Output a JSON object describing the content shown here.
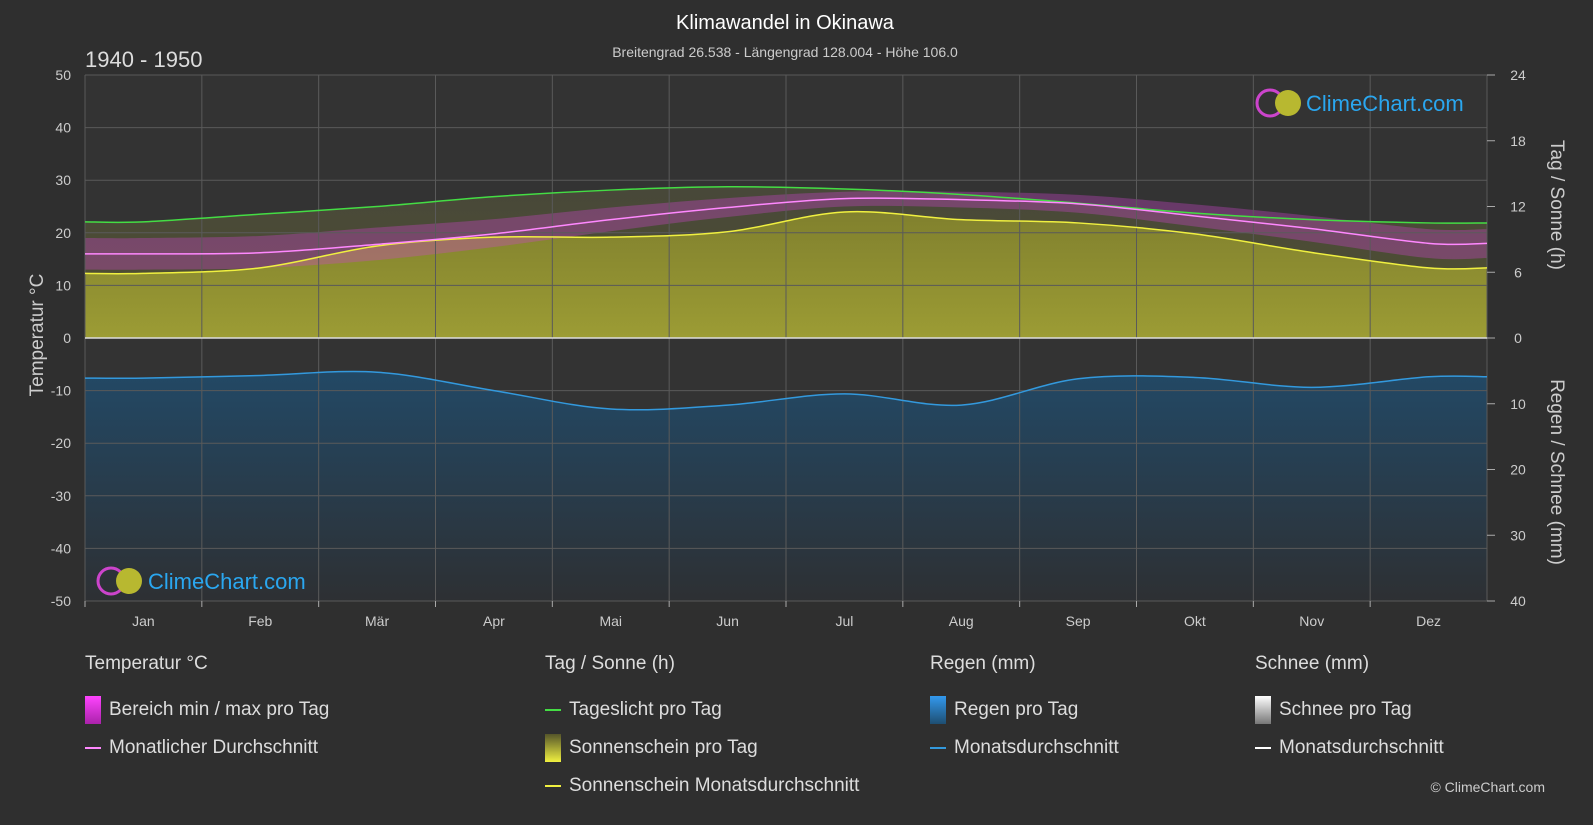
{
  "header": {
    "title": "Klimawandel in Okinawa",
    "subtitle": "Breitengrad 26.538 - Längengrad 128.004 - Höhe 106.0",
    "period": "1940 - 1950"
  },
  "watermark": {
    "text": "ClimeChart.com"
  },
  "copyright": "© ClimeChart.com",
  "colors": {
    "background": "#2f2f2f",
    "daylight": "#44dd44",
    "sunshine_avg": "#f0f040",
    "sunshine_fill": "#a8a832",
    "temp_avg": "#ff88ff",
    "temp_range": "#cc44cc",
    "rain": "#3399dd",
    "snow": "#ffffff",
    "brand": "#2aa7f0"
  },
  "chart_data": {
    "type": "line",
    "months": [
      "Jan",
      "Feb",
      "Mär",
      "Apr",
      "Mai",
      "Jun",
      "Jul",
      "Aug",
      "Sep",
      "Okt",
      "Nov",
      "Dez"
    ],
    "left_axis": {
      "title": "Temperatur °C",
      "min": -50,
      "max": 50,
      "ticks": [
        "50",
        "40",
        "30",
        "20",
        "10",
        "0",
        "-10",
        "-20",
        "-30",
        "-40",
        "-50"
      ]
    },
    "right_axis_top": {
      "title": "Tag / Sonne (h)",
      "min": 0,
      "max": 24,
      "ticks": [
        "24",
        "18",
        "12",
        "6",
        "0"
      ]
    },
    "right_axis_bottom": {
      "title": "Regen / Schnee (mm)",
      "min": 0,
      "max": 40,
      "ticks": [
        "0",
        "10",
        "20",
        "30",
        "40"
      ]
    },
    "series": [
      {
        "name": "Tageslicht pro Tag",
        "unit": "h",
        "values": [
          10.6,
          11.3,
          12.0,
          12.9,
          13.5,
          13.8,
          13.6,
          13.1,
          12.3,
          11.4,
          10.8,
          10.5
        ]
      },
      {
        "name": "Sonnenschein Monatsdurchschnitt",
        "unit": "h",
        "values": [
          5.9,
          6.4,
          8.4,
          9.2,
          9.2,
          9.7,
          11.5,
          10.8,
          10.5,
          9.5,
          7.8,
          6.4
        ]
      },
      {
        "name": "Monatlicher Durchschnitt",
        "unit": "°C",
        "values": [
          16.0,
          16.2,
          17.8,
          19.8,
          22.5,
          24.8,
          26.5,
          26.3,
          25.5,
          23.2,
          20.8,
          18.0
        ]
      },
      {
        "name": "Bereich min / max pro Tag",
        "unit": "°C",
        "min": [
          13.0,
          13.3,
          14.8,
          17.3,
          20.3,
          23.0,
          25.0,
          24.8,
          23.8,
          21.2,
          18.3,
          15.2
        ],
        "max": [
          19.0,
          19.4,
          21.0,
          22.6,
          24.8,
          26.6,
          27.8,
          27.8,
          27.2,
          25.4,
          23.2,
          20.7
        ]
      },
      {
        "name": "Monatsdurchschnitt",
        "category": "Regen",
        "unit": "mm",
        "values": [
          6.1,
          5.7,
          5.2,
          8.0,
          10.8,
          10.2,
          8.5,
          10.2,
          6.2,
          6.0,
          7.5,
          5.9
        ]
      },
      {
        "name": "Monatsdurchschnitt",
        "category": "Schnee",
        "unit": "mm",
        "values": [
          0,
          0,
          0,
          0,
          0,
          0,
          0,
          0,
          0,
          0,
          0,
          0
        ]
      }
    ],
    "grid": true
  },
  "legend": {
    "temperature": {
      "title": "Temperatur °C",
      "items": [
        "Bereich min / max pro Tag",
        "Monatlicher Durchschnitt"
      ]
    },
    "sun": {
      "title": "Tag / Sonne (h)",
      "items": [
        "Tageslicht pro Tag",
        "Sonnenschein pro Tag",
        "Sonnenschein Monatsdurchschnitt"
      ]
    },
    "rain": {
      "title": "Regen (mm)",
      "items": [
        "Regen pro Tag",
        "Monatsdurchschnitt"
      ]
    },
    "snow": {
      "title": "Schnee (mm)",
      "items": [
        "Schnee pro Tag",
        "Monatsdurchschnitt"
      ]
    }
  }
}
